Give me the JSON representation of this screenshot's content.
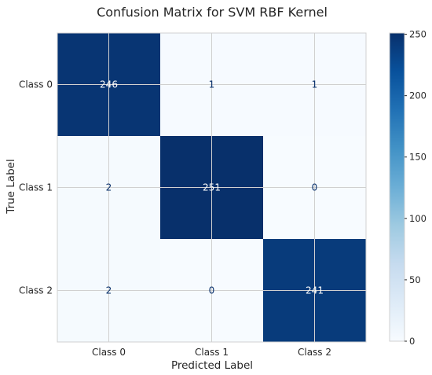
{
  "chart_data": {
    "type": "heatmap",
    "title": "Confusion Matrix for SVM RBF Kernel",
    "xlabel": "Predicted Label",
    "ylabel": "True Label",
    "x_categories": [
      "Class 0",
      "Class 1",
      "Class 2"
    ],
    "y_categories": [
      "Class 0",
      "Class 1",
      "Class 2"
    ],
    "values": [
      [
        246,
        1,
        1
      ],
      [
        2,
        251,
        0
      ],
      [
        2,
        0,
        241
      ]
    ],
    "colormap": "Blues",
    "color_range": [
      0,
      251
    ],
    "colorbar_ticks": [
      0,
      50,
      100,
      150,
      200,
      250
    ],
    "grid": true,
    "text_colors": {
      "on_dark": "#ffffff",
      "on_light": "#08306b"
    },
    "grid_color": "#d0d0d0"
  }
}
